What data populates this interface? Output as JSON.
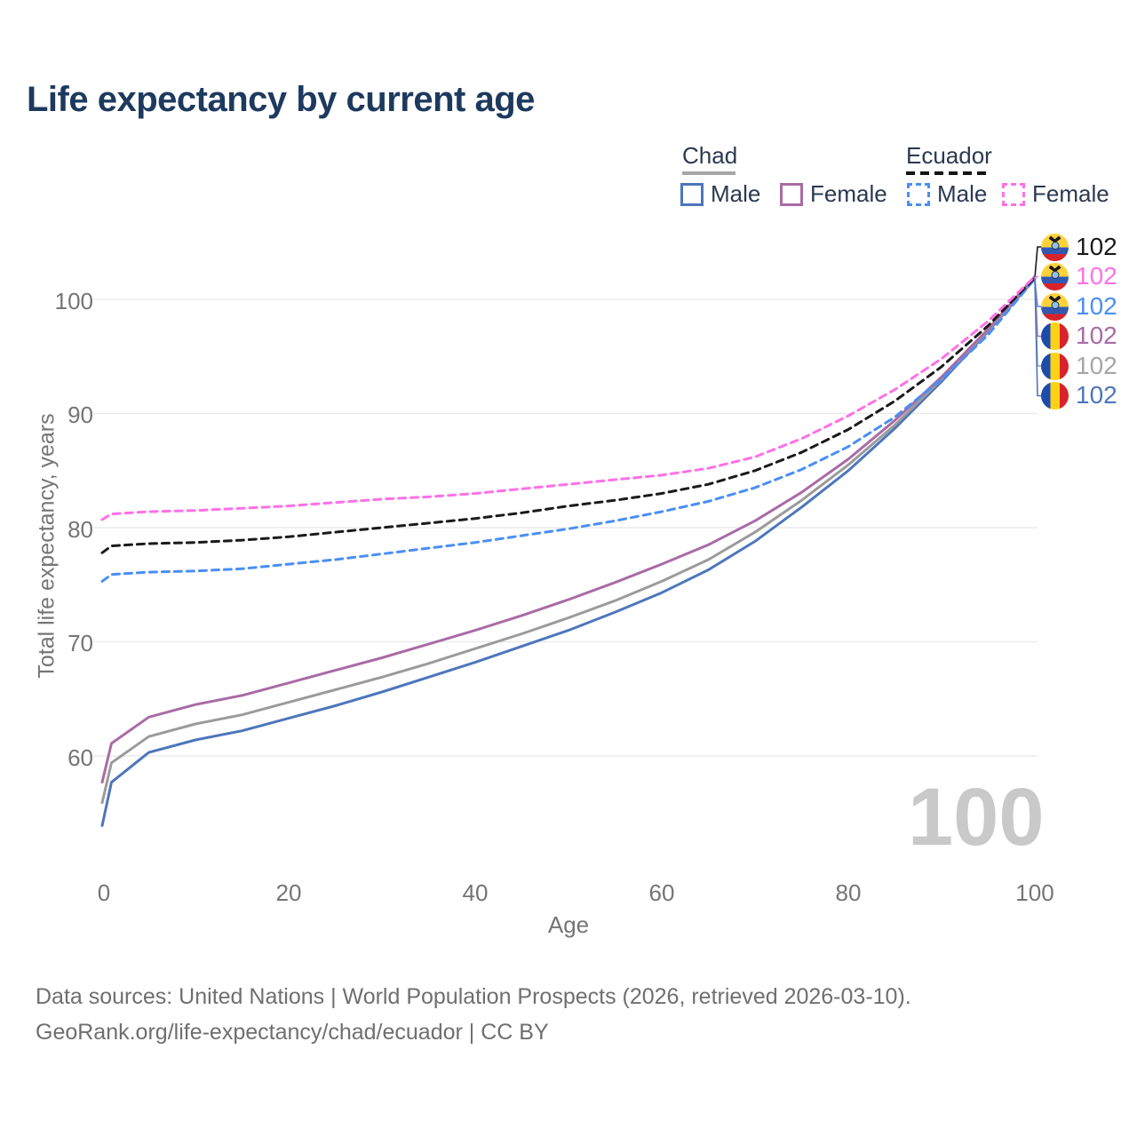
{
  "title": "Life expectancy by current age",
  "legend": {
    "chad": {
      "label": "Chad",
      "male": "Male",
      "female": "Female"
    },
    "ecuador": {
      "label": "Ecuador",
      "male": "Male",
      "female": "Female"
    }
  },
  "colors": {
    "chad_male": "#4d76bb",
    "chad_both": "#9b9b9b",
    "chad_female": "#a96ba5",
    "ecuador_male": "#4a8ef5",
    "ecuador_both": "#1a1a1a",
    "ecuador_female": "#ff70e6",
    "grid": "#ebebeb",
    "axis_text": "#757575",
    "title_text": "#1d3a5e",
    "watermark": "#c9c9c9"
  },
  "watermark": "100",
  "end_labels": [
    {
      "flag": "ecuador",
      "series": "ecuador_both",
      "value": "102",
      "color": "#1a1a1a"
    },
    {
      "flag": "ecuador",
      "series": "ecuador_female",
      "value": "102",
      "color": "#ff70e6"
    },
    {
      "flag": "ecuador",
      "series": "ecuador_male",
      "value": "102",
      "color": "#4a8ef5"
    },
    {
      "flag": "chad",
      "series": "chad_female",
      "value": "102",
      "color": "#a96ba5"
    },
    {
      "flag": "chad",
      "series": "chad_both",
      "value": "102",
      "color": "#a6a6a6"
    },
    {
      "flag": "chad",
      "series": "chad_male",
      "value": "102",
      "color": "#4d76bb"
    }
  ],
  "chart_data": {
    "type": "line",
    "title": "Life expectancy by current age",
    "xlabel": "Age",
    "ylabel": "Total life expectancy, years",
    "xlim": [
      0,
      100
    ],
    "ylim": [
      53,
      103
    ],
    "xticks": [
      0,
      20,
      40,
      60,
      80,
      100
    ],
    "yticks": [
      60,
      70,
      80,
      90,
      100
    ],
    "grid": "horizontal",
    "legend_position": "top-right",
    "x": [
      0,
      1,
      5,
      10,
      15,
      20,
      25,
      30,
      35,
      40,
      45,
      50,
      55,
      60,
      65,
      70,
      75,
      80,
      85,
      90,
      95,
      100
    ],
    "series": [
      {
        "id": "chad_male",
        "name": "Chad Male",
        "country": "Chad",
        "sex": "male",
        "style": "solid",
        "color": "#4d76bb",
        "values": [
          53.9,
          57.7,
          60.3,
          61.4,
          62.2,
          63.3,
          64.4,
          65.6,
          66.9,
          68.2,
          69.6,
          71.0,
          72.6,
          74.3,
          76.3,
          78.8,
          81.8,
          85.0,
          88.7,
          92.8,
          97.2,
          101.8
        ]
      },
      {
        "id": "chad_both",
        "name": "Chad Both sexes",
        "country": "Chad",
        "sex": "both",
        "style": "solid",
        "color": "#9b9b9b",
        "values": [
          55.9,
          59.4,
          61.7,
          62.8,
          63.6,
          64.7,
          65.8,
          66.9,
          68.1,
          69.4,
          70.7,
          72.1,
          73.6,
          75.3,
          77.2,
          79.6,
          82.4,
          85.5,
          89.0,
          93.0,
          97.3,
          101.9
        ]
      },
      {
        "id": "chad_female",
        "name": "Chad Female",
        "country": "Chad",
        "sex": "female",
        "style": "solid",
        "color": "#a96ba5",
        "values": [
          57.7,
          61.1,
          63.4,
          64.5,
          65.3,
          66.4,
          67.5,
          68.6,
          69.8,
          71.0,
          72.3,
          73.7,
          75.2,
          76.8,
          78.5,
          80.6,
          83.1,
          86.0,
          89.4,
          93.2,
          97.4,
          102.0
        ]
      },
      {
        "id": "ecuador_male",
        "name": "Ecuador Male",
        "country": "Ecuador",
        "sex": "male",
        "style": "dashed",
        "color": "#4a8ef5",
        "values": [
          75.3,
          75.9,
          76.1,
          76.2,
          76.4,
          76.8,
          77.2,
          77.7,
          78.2,
          78.7,
          79.3,
          79.9,
          80.6,
          81.4,
          82.3,
          83.5,
          85.1,
          87.1,
          89.7,
          93.0,
          96.9,
          101.8
        ]
      },
      {
        "id": "ecuador_both",
        "name": "Ecuador Both sexes",
        "country": "Ecuador",
        "sex": "both",
        "style": "dashed",
        "color": "#1a1a1a",
        "values": [
          77.8,
          78.4,
          78.6,
          78.7,
          78.9,
          79.2,
          79.6,
          80.0,
          80.4,
          80.8,
          81.3,
          81.9,
          82.4,
          83.0,
          83.8,
          85.0,
          86.6,
          88.6,
          91.1,
          94.1,
          97.7,
          101.9
        ]
      },
      {
        "id": "ecuador_female",
        "name": "Ecuador Female",
        "country": "Ecuador",
        "sex": "female",
        "style": "dashed",
        "color": "#ff70e6",
        "values": [
          80.7,
          81.2,
          81.4,
          81.5,
          81.7,
          81.9,
          82.2,
          82.5,
          82.7,
          83.0,
          83.4,
          83.8,
          84.2,
          84.6,
          85.2,
          86.2,
          87.8,
          89.8,
          92.1,
          94.8,
          98.1,
          102.0
        ]
      }
    ]
  },
  "source": {
    "line1": "Data sources: United Nations | World Population Prospects (2026, retrieved 2026-03-10).",
    "line2": "GeoRank.org/life-expectancy/chad/ecuador | CC BY"
  }
}
